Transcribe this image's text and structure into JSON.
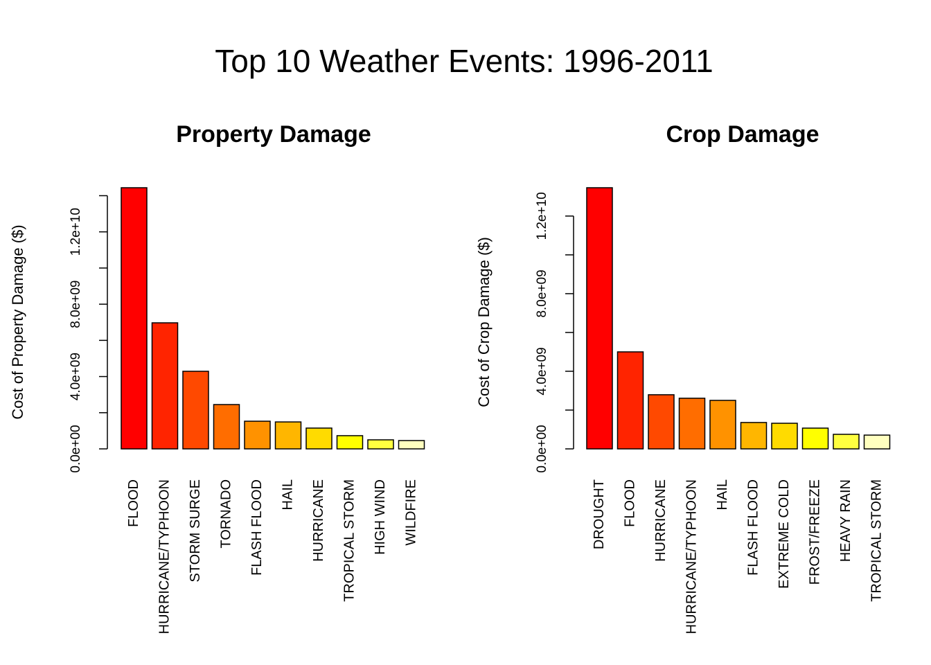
{
  "title": "Top 10 Weather Events: 1996-2011",
  "chart_data": [
    {
      "type": "bar",
      "title": "Property Damage",
      "y_label": "Cost of Property Damage ($)",
      "categories": [
        "FLOOD",
        "HURRICANE/TYPHOON",
        "STORM SURGE",
        "TORNADO",
        "FLASH FLOOD",
        "HAIL",
        "HURRICANE",
        "TROPICAL STORM",
        "HIGH WIND",
        "WILDFIRE"
      ],
      "values": [
        14440000000,
        6970000000,
        4290000000,
        2450000000,
        1530000000,
        1490000000,
        1150000000,
        730000000,
        500000000,
        460000000
      ],
      "colors": [
        "#FF0000",
        "#FF2400",
        "#FF4900",
        "#FF6D00",
        "#FF9200",
        "#FFB600",
        "#FFDB00",
        "#FFFF00",
        "#FFFF40",
        "#FFFFBF"
      ],
      "ylim": [
        0,
        14440000000
      ],
      "yticks": [
        {
          "value": 0,
          "label": "0.0e+00"
        },
        {
          "value": 4000000000,
          "label": "4.0e+09"
        },
        {
          "value": 8000000000,
          "label": "8.0e+09"
        },
        {
          "value": 12000000000,
          "label": "1.2e+10"
        }
      ],
      "yminorticks": [
        2000000000,
        6000000000,
        10000000000,
        14000000000
      ]
    },
    {
      "type": "bar",
      "title": "Crop Damage",
      "y_label": "Cost of Crop Damage ($)",
      "categories": [
        "DROUGHT",
        "FLOOD",
        "HURRICANE",
        "HURRICANE/TYPHOON",
        "HAIL",
        "FLASH FLOOD",
        "EXTREME COLD",
        "FROST/FREEZE",
        "HEAVY RAIN",
        "TROPICAL STORM"
      ],
      "values": [
        13460000000,
        5000000000,
        2790000000,
        2610000000,
        2500000000,
        1360000000,
        1320000000,
        1070000000,
        750000000,
        710000000
      ],
      "colors": [
        "#FF0000",
        "#FF2400",
        "#FF4900",
        "#FF6D00",
        "#FF9200",
        "#FFB600",
        "#FFDB00",
        "#FFFF00",
        "#FFFF40",
        "#FFFFBF"
      ],
      "ylim": [
        0,
        13460000000
      ],
      "yticks": [
        {
          "value": 0,
          "label": "0.0e+00"
        },
        {
          "value": 4000000000,
          "label": "4.0e+09"
        },
        {
          "value": 8000000000,
          "label": "8.0e+09"
        },
        {
          "value": 12000000000,
          "label": "1.2e+10"
        }
      ],
      "yminorticks": [
        2000000000,
        6000000000,
        10000000000
      ]
    }
  ]
}
